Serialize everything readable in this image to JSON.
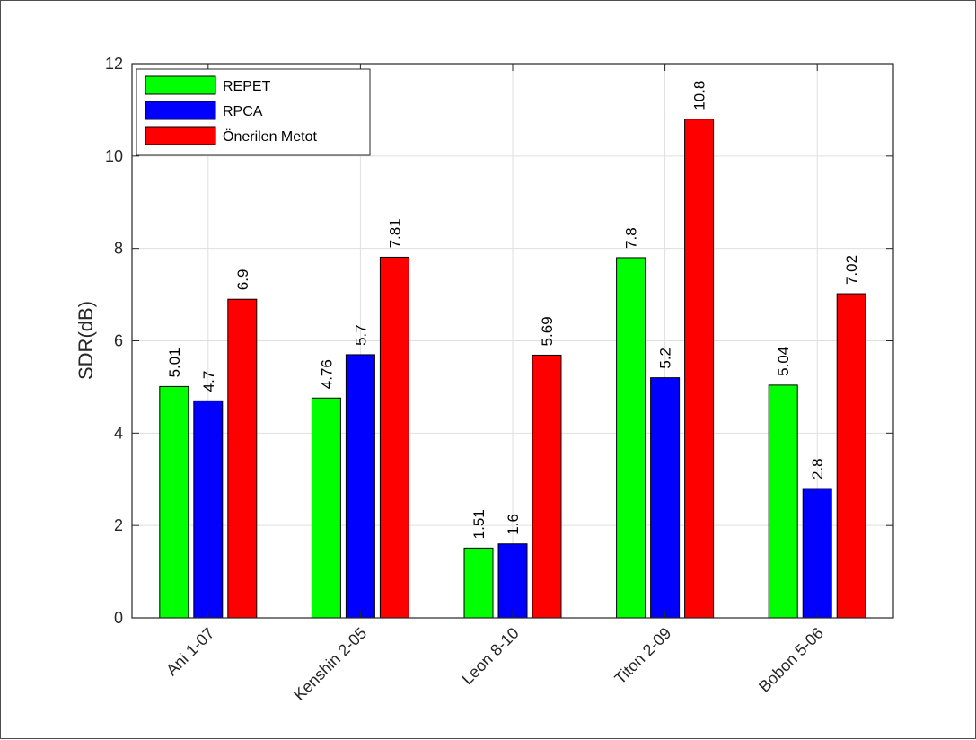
{
  "chart_data": {
    "type": "bar",
    "title": "",
    "xlabel": "",
    "ylabel": "SDR(dB)",
    "ylim": [
      0,
      12
    ],
    "yticks": [
      0,
      2,
      4,
      6,
      8,
      10,
      12
    ],
    "grid": true,
    "legend_position": "top-left",
    "categories": [
      "Ani 1-07",
      "Kenshin 2-05",
      "Leon 8-10",
      "Titon 2-09",
      "Bobon 5-06"
    ],
    "series": [
      {
        "name": "REPET",
        "color": "#00ff00",
        "values": [
          5.01,
          4.76,
          1.51,
          7.8,
          5.04
        ],
        "labels": [
          "5.01",
          "4.76",
          "1.51",
          "7.8",
          "5.04"
        ]
      },
      {
        "name": "RPCA",
        "color": "#0000ff",
        "values": [
          4.7,
          5.7,
          1.6,
          5.2,
          2.8
        ],
        "labels": [
          "4.7",
          "5.7",
          "1.6",
          "5.2",
          "2.8"
        ]
      },
      {
        "name": "Önerilen Metot",
        "color": "#ff0000",
        "values": [
          6.9,
          7.81,
          5.69,
          10.8,
          7.02
        ],
        "labels": [
          "6.9",
          "7.81",
          "5.69",
          "10.8",
          "7.02"
        ]
      }
    ]
  }
}
